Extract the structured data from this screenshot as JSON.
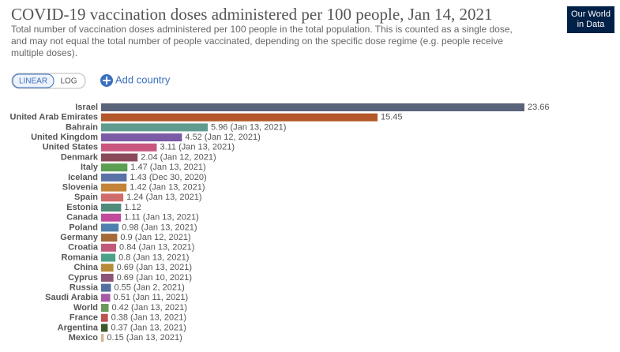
{
  "logo": [
    "Our World",
    "in Data"
  ],
  "controls": {
    "scale_buttons": [
      "LINEAR",
      "LOG"
    ],
    "add_button": "Add country"
  },
  "chart_data": {
    "type": "bar",
    "orientation": "horizontal",
    "title": "COVID-19 vaccination doses administered per 100 people, Jan 14, 2021",
    "subtitle": [
      "Total number of vaccination doses administered per 100 people in the total population. This is counted as a single dose,",
      "and may not equal the total number of people vaccinated, depending on the specific dose regime (e.g. people receive",
      "multiple doses)."
    ],
    "categories": [
      "Israel",
      "United Arab Emirates",
      "Bahrain",
      "United Kingdom",
      "United States",
      "Denmark",
      "Italy",
      "Iceland",
      "Slovenia",
      "Spain",
      "Estonia",
      "Canada",
      "Poland",
      "Germany",
      "Croatia",
      "Romania",
      "China",
      "Cyprus",
      "Russia",
      "Saudi Arabia",
      "World",
      "France",
      "Argentina",
      "Mexico"
    ],
    "values": [
      23.66,
      15.45,
      5.96,
      4.52,
      3.11,
      2.04,
      1.47,
      1.43,
      1.42,
      1.24,
      1.12,
      1.11,
      0.98,
      0.9,
      0.84,
      0.8,
      0.69,
      0.69,
      0.55,
      0.51,
      0.42,
      0.38,
      0.37,
      0.15
    ],
    "value_labels": [
      "23.66",
      "15.45",
      "5.96 (Jan 13, 2021)",
      "4.52 (Jan 12, 2021)",
      "3.11 (Jan 13, 2021)",
      "2.04 (Jan 12, 2021)",
      "1.47 (Jan 13, 2021)",
      "1.43 (Dec 30, 2020)",
      "1.42 (Jan 13, 2021)",
      "1.24 (Jan 13, 2021)",
      "1.12",
      "1.11 (Jan 13, 2021)",
      "0.98 (Jan 13, 2021)",
      "0.9 (Jan 12, 2021)",
      "0.84 (Jan 13, 2021)",
      "0.8 (Jan 13, 2021)",
      "0.69 (Jan 13, 2021)",
      "0.69 (Jan 10, 2021)",
      "0.55 (Jan 2, 2021)",
      "0.51 (Jan 11, 2021)",
      "0.42 (Jan 13, 2021)",
      "0.38 (Jan 13, 2021)",
      "0.37 (Jan 13, 2021)",
      "0.15 (Jan 13, 2021)"
    ],
    "colors": [
      "#59637a",
      "#b4572a",
      "#5f9c8f",
      "#7b5aa6",
      "#c8567e",
      "#8b4a5a",
      "#5c9e52",
      "#5b72a8",
      "#c3843a",
      "#d06b6b",
      "#4f8a7a",
      "#c04a9b",
      "#4e7fae",
      "#a46a38",
      "#c05a7a",
      "#4aa088",
      "#b88b3a",
      "#8c5477",
      "#5371a0",
      "#a65aa6",
      "#6a9a5a",
      "#c0504d",
      "#3a5a2a",
      "#d4b88a"
    ]
  }
}
